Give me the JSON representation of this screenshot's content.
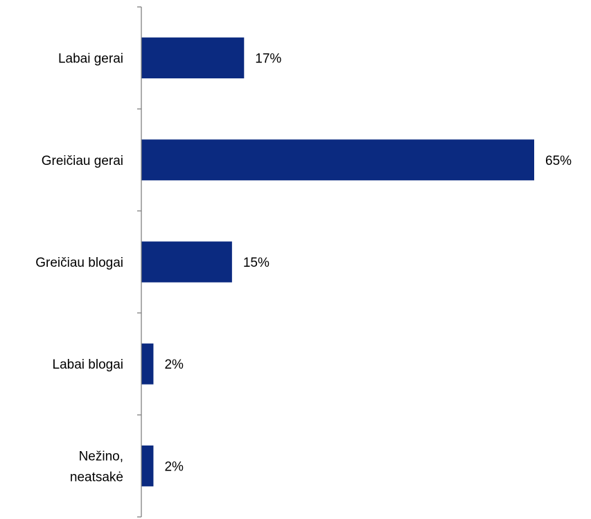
{
  "chart_data": {
    "type": "bar",
    "orientation": "horizontal",
    "categories": [
      [
        "Labai gerai"
      ],
      [
        "Greičiau gerai"
      ],
      [
        "Greičiau blogai"
      ],
      [
        "Labai blogai"
      ],
      [
        "Nežino,",
        "neatsakė"
      ]
    ],
    "values": [
      17,
      65,
      15,
      2,
      2
    ],
    "value_labels": [
      "17%",
      "65%",
      "15%",
      "2%",
      "2%"
    ],
    "unit": "%",
    "xlim": [
      0,
      65
    ],
    "grid": false,
    "legend": "none",
    "bar_color": "#0b2a80"
  }
}
